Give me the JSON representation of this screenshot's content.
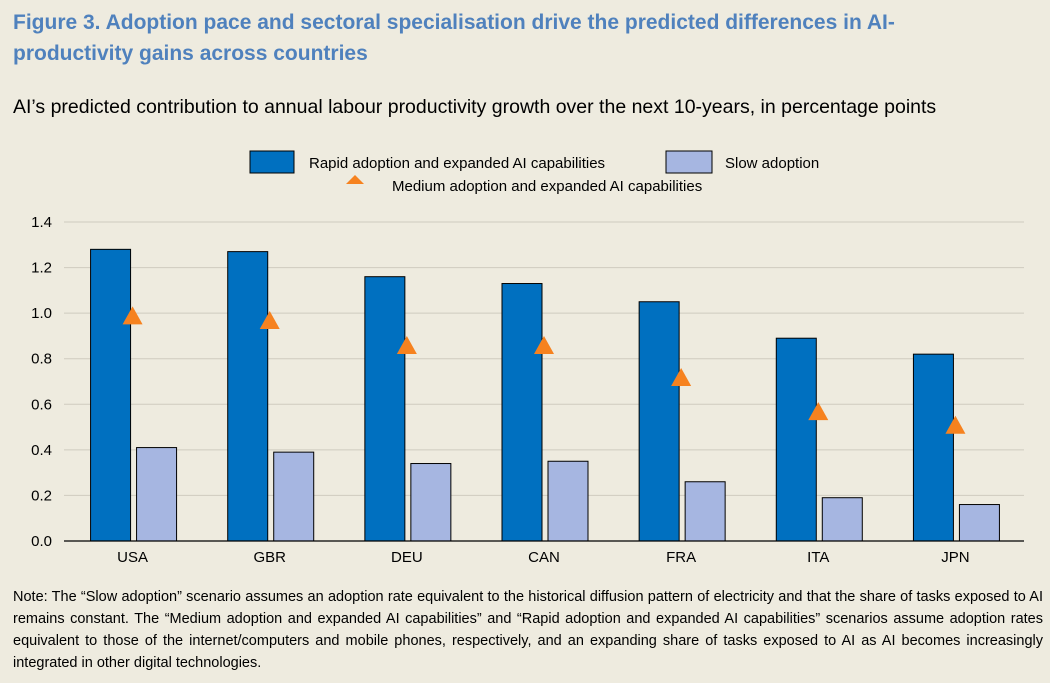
{
  "figure": {
    "title": "Figure 3. Adoption pace and sectoral specialisation drive the predicted differences in AI-productivity gains across countries",
    "subtitle": "AI’s predicted contribution to annual labour productivity growth over the next 10-years, in percentage points",
    "note": "Note: The “Slow adoption” scenario assumes an adoption rate equivalent to the historical diffusion pattern of electricity and that the share of tasks exposed to AI remains constant. The “Medium adoption and expanded AI capabilities” and “Rapid adoption and expanded AI capabilities” scenarios assume adoption rates equivalent to those of the internet/computers and mobile phones, respectively, and an expanding share of tasks exposed to AI as AI becomes increasingly integrated in other digital technologies."
  },
  "colors": {
    "rapid": "#0070c0",
    "slow": "#a6b6e1",
    "medium": "#f6821f",
    "grid": "#cfcbbf",
    "axis": "#000000"
  },
  "chart_data": {
    "type": "bar",
    "title": "AI’s predicted contribution to annual labour productivity growth over the next 10-years, in percentage points",
    "xlabel": "",
    "ylabel": "",
    "ylim": [
      0,
      1.4
    ],
    "yticks": [
      "0.0",
      "0.2",
      "0.4",
      "0.6",
      "0.8",
      "1.0",
      "1.2",
      "1.4"
    ],
    "grid": true,
    "legend_position": "top-center",
    "categories": [
      "USA",
      "GBR",
      "DEU",
      "CAN",
      "FRA",
      "ITA",
      "JPN"
    ],
    "series": [
      {
        "name": "Rapid adoption and expanded AI capabilities",
        "type": "bar",
        "values": [
          1.28,
          1.27,
          1.16,
          1.13,
          1.05,
          0.89,
          0.82
        ]
      },
      {
        "name": "Slow adoption",
        "type": "bar",
        "values": [
          0.41,
          0.39,
          0.34,
          0.35,
          0.26,
          0.19,
          0.16
        ]
      },
      {
        "name": "Medium adoption and expanded AI capabilities",
        "type": "marker",
        "marker": "triangle",
        "values": [
          0.99,
          0.97,
          0.86,
          0.86,
          0.72,
          0.57,
          0.51
        ]
      }
    ]
  }
}
